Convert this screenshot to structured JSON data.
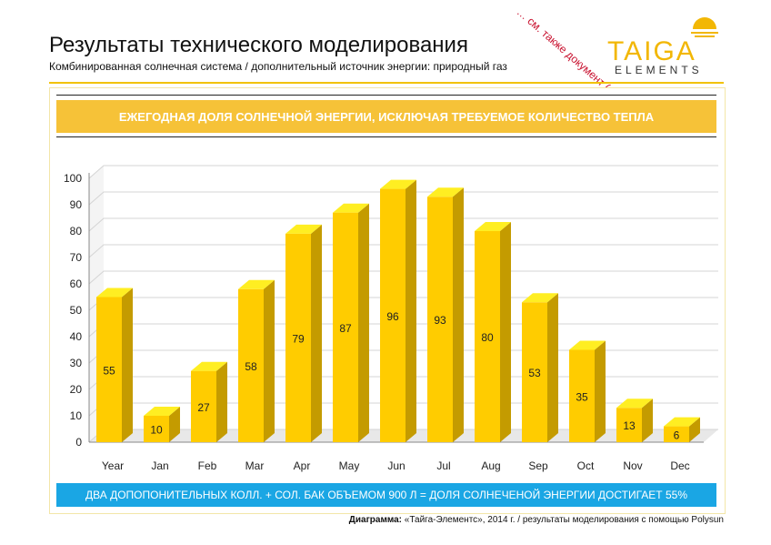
{
  "header": {
    "title": "Результаты технического моделирования",
    "subtitle": "Комбинированная солнечная система / дополнительный источник энергии: природный газ"
  },
  "logo": {
    "word": "TAIGA",
    "sub": "ELEMENTS"
  },
  "note": "… см. также документ (4)",
  "banner": "ЕЖЕГОДНАЯ ДОЛЯ СОЛНЕЧНОЙ ЭНЕРГИИ, ИСКЛЮЧАЯ ТРЕБУЕМОЕ КОЛИЧЕСТВО ТЕПЛА",
  "footer_bar": "ДВА ДОПОПОНИТЕЛЬНЫХ  КОЛЛ. + СОЛ. БАК ОБЪЕМОМ 900 Л = ДОЛЯ СОЛНЕЧЕНОЙ ЭНЕРГИИ ДОСТИГАЕТ 55%",
  "caption": {
    "label": "Диаграмма:",
    "text": " «Тайга-Элементс», 2014 г. / результаты моделирования с помощью Polysun"
  },
  "colors": {
    "bar_front": "#ffcc00",
    "bar_side": "#c49b00",
    "bar_top": "#ffee22",
    "banner": "#f6c238",
    "footer": "#1aa6e4",
    "note": "#c8102e"
  },
  "chart_data": {
    "type": "bar",
    "categories": [
      "Year",
      "Jan",
      "Feb",
      "Mar",
      "Apr",
      "May",
      "Jun",
      "Jul",
      "Aug",
      "Sep",
      "Oct",
      "Nov",
      "Dec"
    ],
    "values": [
      55,
      10,
      27,
      58,
      79,
      87,
      96,
      93,
      80,
      53,
      35,
      13,
      6
    ],
    "ylim": [
      0,
      100
    ],
    "yticks": [
      0,
      10,
      20,
      30,
      40,
      50,
      60,
      70,
      80,
      90,
      100
    ],
    "grid": true,
    "title": "",
    "xlabel": "",
    "ylabel": ""
  }
}
